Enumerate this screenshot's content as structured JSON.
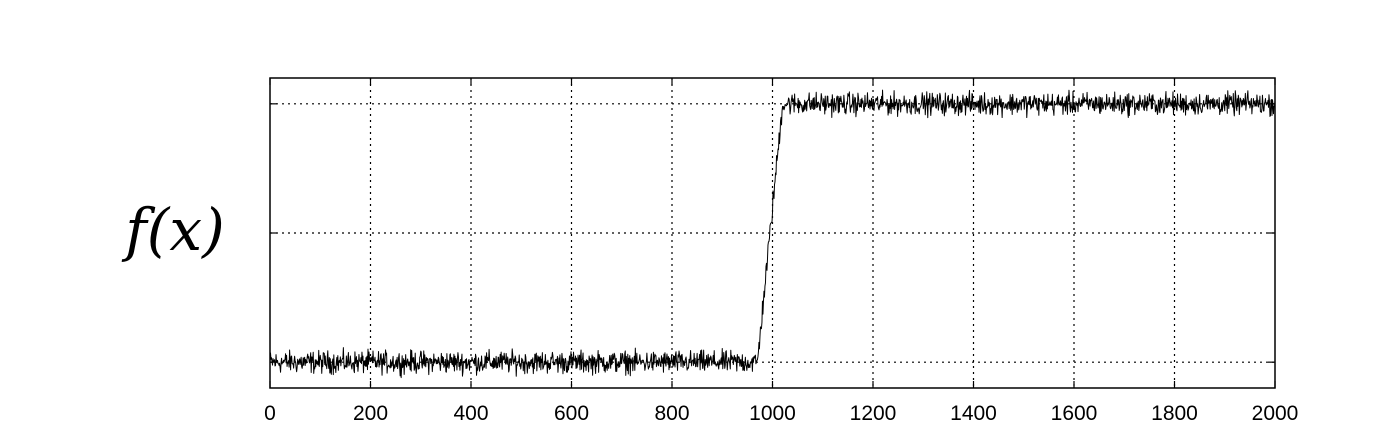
{
  "chart_data": {
    "type": "line",
    "title": "",
    "xlabel": "",
    "ylabel": "f(x)",
    "xlim": [
      0,
      2000
    ],
    "ylim": [
      0,
      1.2
    ],
    "grid": true,
    "grid_style": "dotted",
    "x_ticks": [
      0,
      200,
      400,
      600,
      800,
      1000,
      1200,
      1400,
      1600,
      1800,
      2000
    ],
    "x_tick_labels": [
      "0",
      "200",
      "400",
      "600",
      "800",
      "1000",
      "1200",
      "1400",
      "1600",
      "1800",
      "2000"
    ],
    "y_ticks": [
      0.1,
      0.6,
      1.1
    ],
    "y_tick_labels": [
      "",
      "",
      ""
    ],
    "series": [
      {
        "description": "noisy step signal",
        "x": [
          0,
          970,
          1020,
          2000
        ],
        "y": [
          0.1,
          0.1,
          1.1,
          1.1
        ],
        "noise_amplitude": 0.03
      }
    ],
    "colors": {
      "line": "#000000",
      "axes": "#000000",
      "grid": "#000000",
      "background": "#ffffff"
    }
  }
}
